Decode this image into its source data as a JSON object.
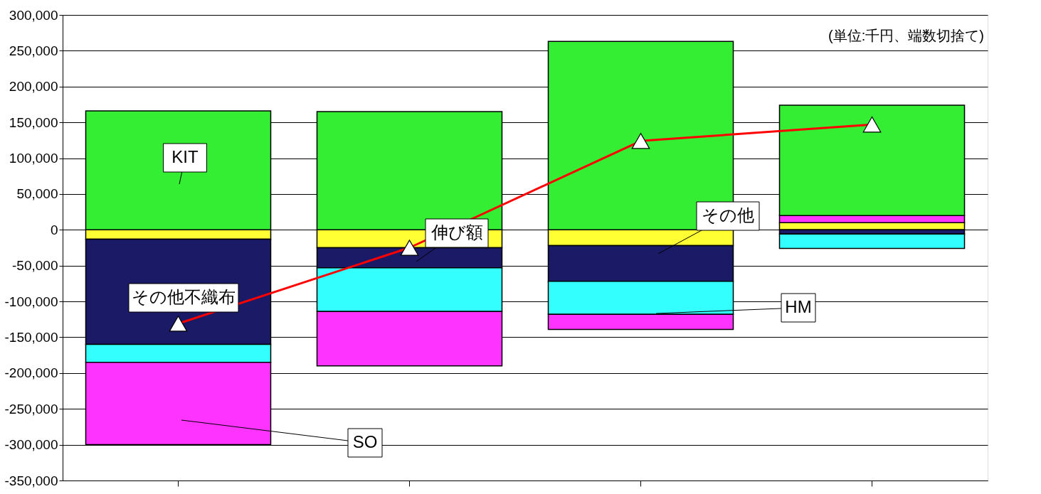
{
  "chart_data": {
    "type": "bar",
    "stacked": true,
    "categories": [
      null,
      null,
      null,
      null
    ],
    "series": [
      {
        "name": "その他",
        "color": "#ffff33",
        "values": [
          -13000,
          -25000,
          -22000,
          10000
        ]
      },
      {
        "name": "その他不織布",
        "color": "#1a1a66",
        "values": [
          -147000,
          -28000,
          -50000,
          -6000
        ]
      },
      {
        "name": "HM",
        "color": "#33ffff",
        "values": [
          -25000,
          -61000,
          -46000,
          -20000
        ]
      },
      {
        "name": "SO",
        "color": "#ff33ff",
        "values": [
          -115000,
          -76000,
          -21000,
          10000
        ]
      },
      {
        "name": "KIT",
        "color": "#33ee33",
        "values": [
          166000,
          165000,
          263000,
          154000
        ]
      },
      {
        "name": "伸び額",
        "type": "line",
        "color": "#ff0000",
        "marker": "triangle",
        "values": [
          -131000,
          -25000,
          124000,
          147000
        ]
      }
    ],
    "ylim": [
      -350000,
      300000
    ],
    "yticks": [
      {
        "value": -350000,
        "label": "-350,000"
      },
      {
        "value": -300000,
        "label": "-300,000"
      },
      {
        "value": -250000,
        "label": "-250,000"
      },
      {
        "value": -200000,
        "label": "-200,000"
      },
      {
        "value": -150000,
        "label": "-150,000"
      },
      {
        "value": -100000,
        "label": "-100,000"
      },
      {
        "value": -50000,
        "label": "-50,000"
      },
      0,
      {
        "value": 50000,
        "label": "50,000"
      },
      {
        "value": 100000,
        "label": "100,000"
      },
      {
        "value": 150000,
        "label": "150,000"
      },
      {
        "value": 200000,
        "label": "200,000"
      },
      {
        "value": 250000,
        "label": "250,000"
      },
      {
        "value": 300000,
        "label": "300,000"
      }
    ],
    "grid": "y",
    "legend": false,
    "tick_labels": "y",
    "annotations": [
      "(単位:千円、端数切捨て)"
    ]
  }
}
